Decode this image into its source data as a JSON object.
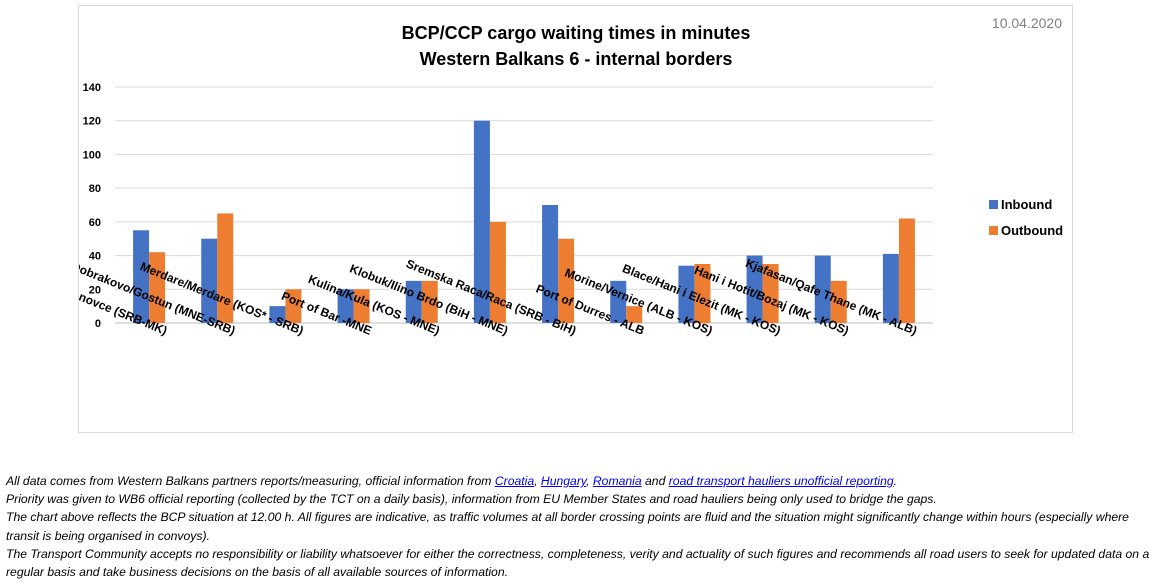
{
  "chart_data": {
    "type": "bar",
    "title_lines": [
      "BCP/CCP cargo waiting times in minutes",
      "Western Balkans 6 - internal borders"
    ],
    "date": "10.04.2020",
    "categories": [
      "Presevo/ Tabanovce (SRB-MK)",
      "Dobrakovo/Gostun (MNE-SRB)",
      "Merdare/Merdare (KOS* - SRB)",
      "Port of Bar -MNE",
      "Kulina/Kula (KOS - MNE)",
      "Klobuk/Ilino Brdo (BiH - MNE)",
      "Sremska Raca/Raca (SRB - BiH)",
      "Port of Durres - ALB",
      "Morine/Vernice (ALB - KOS)",
      "Blace/Hani i Elezit (MK - KOS)",
      "Hani i Hotit/Bozaj (MK - KOS)",
      "Kjafasan/Qafe Thane (MK - ALB)"
    ],
    "series": [
      {
        "name": "Inbound",
        "color": "#4472c4",
        "values": [
          55,
          50,
          10,
          20,
          25,
          120,
          70,
          25,
          34,
          40,
          40,
          41
        ]
      },
      {
        "name": "Outbound",
        "color": "#ed7d31",
        "values": [
          42,
          65,
          20,
          20,
          25,
          60,
          50,
          10,
          35,
          35,
          25,
          62
        ]
      }
    ],
    "ylim": [
      0,
      140
    ],
    "yticks": [
      "0",
      "20",
      "40",
      "60",
      "80",
      "100",
      "120",
      "140"
    ],
    "grid": true,
    "legend_position": "right"
  },
  "notes": {
    "line1_pre": "All data comes from Western Balkans partners reports/measuring, official information from ",
    "link_croatia": "Croatia",
    "sep1": ", ",
    "link_hungary": "Hungary",
    "sep2": ", ",
    "link_romania": "Romania",
    "and": " and ",
    "link_hauliers": "road transport hauliers unofficial reporting",
    "line1_end": ".",
    "line2": "Priority was given to WB6 official reporting (collected by the TCT on a daily basis), information from EU Member States and road hauliers being only used to bridge the gaps.",
    "line3": "The chart above reflects the BCP situation at 12.00 h. All figures are indicative, as traffic volumes at all border crossing points are fluid and the situation might significantly change within hours (especially where transit is being organised in convoys).",
    "line4": "The Transport Community accepts no responsibility or liability whatsoever for either the correctness, completeness, verity and actuality of such figures and recommends all road users to seek for updated data on a regular basis and take business decisions on the basis of all available sources of information."
  }
}
